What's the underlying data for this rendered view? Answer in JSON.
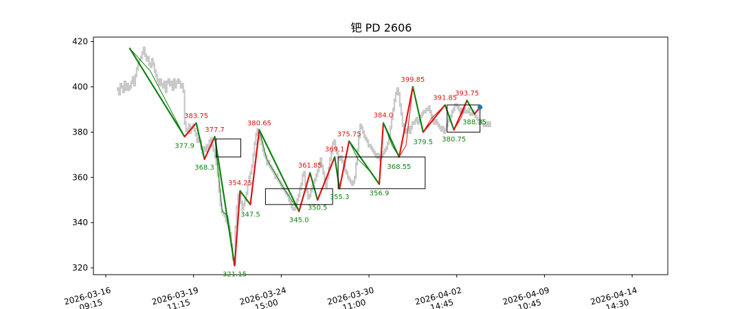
{
  "chart_data": {
    "type": "line",
    "title": "钯 PD 2606",
    "xlabel": "",
    "ylabel": "",
    "ylim": [
      317,
      422
    ],
    "yticks": [
      320,
      340,
      360,
      380,
      400,
      420
    ],
    "xticks": [
      {
        "date": "2026-03-16",
        "time": "09:15",
        "pos": 0
      },
      {
        "date": "2026-03-19",
        "time": "11:15",
        "pos": 128
      },
      {
        "date": "2026-03-24",
        "time": "15:00",
        "pos": 256
      },
      {
        "date": "2026-03-30",
        "time": "11:00",
        "pos": 384
      },
      {
        "date": "2026-04-02",
        "time": "14:45",
        "pos": 512
      },
      {
        "date": "2026-04-09",
        "time": "10:45",
        "pos": 640
      },
      {
        "date": "2026-04-14",
        "time": "14:30",
        "pos": 768
      }
    ],
    "x_index_range": [
      -18,
      820
    ],
    "grid": false,
    "colors": {
      "up": "#e01010",
      "down": "#108010",
      "price": "#c8c8c8",
      "zone": "#000000",
      "last_point": "#1f77b4"
    },
    "price_series": [
      [
        17,
        399
      ],
      [
        19,
        397
      ],
      [
        21,
        401
      ],
      [
        23,
        400
      ],
      [
        25,
        398
      ],
      [
        27,
        402
      ],
      [
        29,
        399
      ],
      [
        31,
        401
      ],
      [
        33,
        399
      ],
      [
        35,
        400
      ],
      [
        37,
        402
      ],
      [
        39,
        404
      ],
      [
        41,
        401
      ],
      [
        43,
        405
      ],
      [
        45,
        408
      ],
      [
        47,
        410
      ],
      [
        49,
        412
      ],
      [
        51,
        413
      ],
      [
        53,
        415
      ],
      [
        55,
        417
      ],
      [
        57,
        414
      ],
      [
        59,
        412
      ],
      [
        61,
        413
      ],
      [
        63,
        410
      ],
      [
        65,
        409
      ],
      [
        67,
        412
      ],
      [
        69,
        410
      ],
      [
        71,
        407
      ],
      [
        73,
        405
      ],
      [
        75,
        403
      ],
      [
        77,
        401
      ],
      [
        79,
        403
      ],
      [
        81,
        401
      ],
      [
        83,
        400
      ],
      [
        85,
        402
      ],
      [
        87,
        398
      ],
      [
        89,
        402
      ],
      [
        91,
        403
      ],
      [
        93,
        401
      ],
      [
        95,
        402
      ],
      [
        97,
        399
      ],
      [
        99,
        403
      ],
      [
        101,
        400
      ],
      [
        103,
        402
      ],
      [
        105,
        403
      ],
      [
        107,
        402
      ],
      [
        109,
        400
      ],
      [
        111,
        401
      ],
      [
        113,
        398
      ],
      [
        115,
        384
      ],
      [
        117,
        381
      ],
      [
        119,
        380
      ],
      [
        121,
        383
      ],
      [
        123,
        380
      ],
      [
        125,
        382
      ],
      [
        127,
        383
      ],
      [
        129,
        381
      ],
      [
        131,
        379
      ],
      [
        133,
        376
      ],
      [
        135,
        377
      ],
      [
        137,
        376
      ],
      [
        139,
        373
      ],
      [
        141,
        371
      ],
      [
        143,
        373
      ],
      [
        145,
        372
      ],
      [
        147,
        374
      ],
      [
        149,
        373
      ],
      [
        151,
        376
      ],
      [
        153,
        377
      ],
      [
        155,
        374
      ],
      [
        157,
        372
      ],
      [
        159,
        369
      ],
      [
        161,
        366
      ],
      [
        163,
        361
      ],
      [
        165,
        354
      ],
      [
        167,
        348
      ],
      [
        169,
        345
      ],
      [
        171,
        344
      ],
      [
        173,
        343
      ],
      [
        175,
        341
      ],
      [
        177,
        340
      ],
      [
        179,
        338
      ],
      [
        181,
        335
      ],
      [
        183,
        330
      ],
      [
        185,
        324
      ],
      [
        187,
        322
      ],
      [
        189,
        338
      ],
      [
        191,
        347
      ],
      [
        193,
        352
      ],
      [
        195,
        353
      ],
      [
        197,
        349
      ],
      [
        199,
        346
      ],
      [
        201,
        348
      ],
      [
        203,
        350
      ],
      [
        205,
        353
      ],
      [
        207,
        357
      ],
      [
        209,
        360
      ],
      [
        211,
        362
      ],
      [
        213,
        365
      ],
      [
        215,
        370
      ],
      [
        217,
        375
      ],
      [
        219,
        379
      ],
      [
        221,
        381
      ],
      [
        223,
        378
      ],
      [
        225,
        377
      ],
      [
        227,
        375
      ],
      [
        229,
        372
      ],
      [
        231,
        370
      ],
      [
        233,
        369
      ],
      [
        235,
        366
      ],
      [
        237,
        367
      ],
      [
        239,
        365
      ],
      [
        241,
        364
      ],
      [
        243,
        363
      ],
      [
        245,
        362
      ],
      [
        247,
        360
      ],
      [
        249,
        361
      ],
      [
        251,
        359
      ],
      [
        253,
        358
      ],
      [
        255,
        357
      ],
      [
        257,
        356
      ],
      [
        259,
        355
      ],
      [
        261,
        354
      ],
      [
        263,
        353
      ],
      [
        265,
        352
      ],
      [
        267,
        350
      ],
      [
        269,
        349
      ],
      [
        271,
        347
      ],
      [
        273,
        346
      ],
      [
        275,
        346
      ],
      [
        277,
        348
      ],
      [
        279,
        350
      ],
      [
        281,
        352
      ],
      [
        283,
        355
      ],
      [
        285,
        357
      ],
      [
        287,
        361
      ],
      [
        289,
        362
      ],
      [
        291,
        357
      ],
      [
        293,
        354
      ],
      [
        295,
        351
      ],
      [
        297,
        352
      ],
      [
        299,
        354
      ],
      [
        301,
        356
      ],
      [
        303,
        358
      ],
      [
        305,
        359
      ],
      [
        307,
        361
      ],
      [
        309,
        363
      ],
      [
        311,
        366
      ],
      [
        313,
        368
      ],
      [
        315,
        365
      ],
      [
        317,
        362
      ],
      [
        319,
        359
      ],
      [
        321,
        356
      ],
      [
        323,
        360
      ],
      [
        325,
        364
      ],
      [
        327,
        368
      ],
      [
        329,
        371
      ],
      [
        331,
        375
      ],
      [
        333,
        376
      ],
      [
        335,
        373
      ],
      [
        337,
        371
      ],
      [
        339,
        369
      ],
      [
        341,
        368
      ],
      [
        343,
        369
      ],
      [
        345,
        367
      ],
      [
        347,
        365
      ],
      [
        349,
        363
      ],
      [
        351,
        362
      ],
      [
        353,
        360
      ],
      [
        355,
        359
      ],
      [
        357,
        358
      ],
      [
        359,
        357
      ],
      [
        361,
        358
      ],
      [
        363,
        360
      ],
      [
        365,
        366
      ],
      [
        367,
        372
      ],
      [
        369,
        378
      ],
      [
        371,
        383
      ],
      [
        373,
        382
      ],
      [
        375,
        380
      ],
      [
        377,
        378
      ],
      [
        379,
        377
      ],
      [
        381,
        376
      ],
      [
        383,
        374
      ],
      [
        385,
        374
      ],
      [
        387,
        373
      ],
      [
        389,
        372
      ],
      [
        391,
        371
      ],
      [
        393,
        370
      ],
      [
        395,
        369
      ],
      [
        397,
        370
      ],
      [
        399,
        368
      ],
      [
        401,
        369
      ],
      [
        403,
        370
      ],
      [
        405,
        371
      ],
      [
        407,
        372
      ],
      [
        409,
        373
      ],
      [
        411,
        375
      ],
      [
        413,
        378
      ],
      [
        415,
        382
      ],
      [
        417,
        386
      ],
      [
        419,
        390
      ],
      [
        421,
        394
      ],
      [
        423,
        397
      ],
      [
        425,
        399
      ],
      [
        427,
        397
      ],
      [
        429,
        392
      ],
      [
        431,
        388
      ],
      [
        433,
        383
      ],
      [
        435,
        381
      ],
      [
        437,
        380
      ],
      [
        439,
        381
      ],
      [
        441,
        382
      ],
      [
        443,
        380
      ],
      [
        445,
        382
      ],
      [
        447,
        384
      ],
      [
        449,
        384
      ],
      [
        451,
        385
      ],
      [
        453,
        386
      ],
      [
        455,
        384
      ],
      [
        457,
        385
      ],
      [
        459,
        387
      ],
      [
        461,
        388
      ],
      [
        463,
        389
      ],
      [
        465,
        389
      ],
      [
        467,
        390
      ],
      [
        469,
        390
      ],
      [
        471,
        391
      ],
      [
        473,
        389
      ],
      [
        475,
        387
      ],
      [
        477,
        385
      ],
      [
        479,
        384
      ],
      [
        481,
        385
      ],
      [
        483,
        384
      ],
      [
        485,
        383
      ],
      [
        487,
        382
      ],
      [
        489,
        381
      ],
      [
        491,
        382
      ],
      [
        493,
        380
      ],
      [
        495,
        381
      ],
      [
        497,
        383
      ],
      [
        499,
        385
      ],
      [
        501,
        386
      ],
      [
        503,
        387
      ],
      [
        505,
        389
      ],
      [
        507,
        390
      ],
      [
        509,
        392
      ],
      [
        511,
        392
      ],
      [
        513,
        391
      ],
      [
        515,
        390
      ],
      [
        517,
        389
      ],
      [
        519,
        390
      ],
      [
        521,
        389
      ],
      [
        523,
        390
      ],
      [
        525,
        389
      ],
      [
        527,
        389
      ],
      [
        529,
        390
      ],
      [
        531,
        388
      ],
      [
        533,
        388
      ],
      [
        535,
        389
      ],
      [
        537,
        388
      ],
      [
        539,
        387
      ],
      [
        541,
        386
      ],
      [
        543,
        385
      ],
      [
        545,
        384
      ],
      [
        547,
        385
      ],
      [
        549,
        384
      ],
      [
        551,
        383
      ],
      [
        553,
        383
      ],
      [
        555,
        384
      ],
      [
        557,
        383
      ],
      [
        559,
        384
      ],
      [
        561,
        383
      ]
    ],
    "zigzag_segments": [
      [
        35,
        417,
        115,
        378
      ],
      [
        115,
        378,
        132,
        384
      ],
      [
        132,
        384,
        144,
        368
      ],
      [
        144,
        368,
        159,
        378
      ],
      [
        159,
        378,
        188,
        321
      ],
      [
        188,
        321,
        196,
        354
      ],
      [
        196,
        354,
        211,
        348
      ],
      [
        211,
        348,
        224,
        381
      ],
      [
        224,
        381,
        282,
        345
      ],
      [
        282,
        345,
        298,
        362
      ],
      [
        298,
        362,
        309,
        350
      ],
      [
        309,
        350,
        334,
        369
      ],
      [
        334,
        369,
        341,
        355
      ],
      [
        341,
        355,
        355,
        376
      ],
      [
        355,
        376,
        399,
        357
      ],
      [
        399,
        357,
        405,
        384
      ],
      [
        405,
        384,
        428,
        369
      ],
      [
        428,
        369,
        448,
        400
      ],
      [
        448,
        400,
        463,
        380
      ],
      [
        463,
        380,
        495,
        392
      ],
      [
        495,
        392,
        508,
        381
      ],
      [
        508,
        381,
        527,
        394
      ],
      [
        527,
        394,
        538,
        388
      ],
      [
        538,
        388,
        546,
        391
      ]
    ],
    "thin_segments": [
      [
        35,
        417,
        65,
        407
      ],
      [
        65,
        407,
        115,
        378
      ],
      [
        144,
        368,
        159,
        378
      ],
      [
        159,
        378,
        170,
        345
      ],
      [
        170,
        345,
        178,
        343
      ],
      [
        178,
        343,
        188,
        321
      ],
      [
        224,
        381,
        235,
        368
      ],
      [
        235,
        368,
        260,
        355
      ],
      [
        260,
        355,
        282,
        345
      ],
      [
        355,
        376,
        368,
        368
      ],
      [
        368,
        368,
        388,
        362
      ],
      [
        388,
        362,
        399,
        357
      ],
      [
        405,
        384,
        418,
        374
      ],
      [
        418,
        374,
        428,
        369
      ],
      [
        428,
        369,
        438,
        374
      ],
      [
        438,
        374,
        448,
        400
      ],
      [
        463,
        380,
        475,
        386
      ],
      [
        475,
        386,
        495,
        392
      ],
      [
        495,
        392,
        508,
        381
      ],
      [
        508,
        381,
        518,
        386
      ],
      [
        518,
        386,
        527,
        394
      ]
    ],
    "zones": [
      {
        "x0": 161,
        "x1": 197,
        "y0": 369,
        "y1": 377
      },
      {
        "x0": 233,
        "x1": 331,
        "y0": 348,
        "y1": 355
      },
      {
        "x0": 339,
        "x1": 466,
        "y0": 355,
        "y1": 369
      },
      {
        "x0": 498,
        "x1": 546,
        "y0": 380,
        "y1": 392
      }
    ],
    "last_point": [
      546,
      391
    ],
    "pivots": [
      {
        "x": 115,
        "y": 377.9,
        "label": "377.9",
        "type": "low"
      },
      {
        "x": 132,
        "y": 383.75,
        "label": "383.75",
        "type": "high"
      },
      {
        "x": 144,
        "y": 368.3,
        "label": "368.3",
        "type": "low"
      },
      {
        "x": 159,
        "y": 377.7,
        "label": "377.7",
        "type": "high"
      },
      {
        "x": 188,
        "y": 321.15,
        "label": "321.15",
        "type": "low"
      },
      {
        "x": 196,
        "y": 354.25,
        "label": "354.25",
        "type": "high"
      },
      {
        "x": 211,
        "y": 347.5,
        "label": "347.5",
        "type": "low"
      },
      {
        "x": 224,
        "y": 380.65,
        "label": "380.65",
        "type": "high"
      },
      {
        "x": 282,
        "y": 345.0,
        "label": "345.0",
        "type": "low"
      },
      {
        "x": 298,
        "y": 361.85,
        "label": "361.85",
        "type": "high"
      },
      {
        "x": 309,
        "y": 350.5,
        "label": "350.5",
        "type": "low"
      },
      {
        "x": 334,
        "y": 369.1,
        "label": "369.1",
        "type": "high"
      },
      {
        "x": 341,
        "y": 355.3,
        "label": "355.3",
        "type": "low"
      },
      {
        "x": 355,
        "y": 375.75,
        "label": "375.75",
        "type": "high"
      },
      {
        "x": 399,
        "y": 356.9,
        "label": "356.9",
        "type": "low"
      },
      {
        "x": 405,
        "y": 384.0,
        "label": "384.0",
        "type": "high"
      },
      {
        "x": 428,
        "y": 368.55,
        "label": "368.55",
        "type": "low"
      },
      {
        "x": 448,
        "y": 399.85,
        "label": "399.85",
        "type": "high"
      },
      {
        "x": 463,
        "y": 379.5,
        "label": "379.5",
        "type": "low"
      },
      {
        "x": 495,
        "y": 391.85,
        "label": "391.85",
        "type": "high"
      },
      {
        "x": 508,
        "y": 380.75,
        "label": "380.75",
        "type": "low"
      },
      {
        "x": 527,
        "y": 393.75,
        "label": "393.75",
        "type": "high"
      },
      {
        "x": 538,
        "y": 388.35,
        "label": "388.35",
        "type": "low"
      }
    ]
  }
}
